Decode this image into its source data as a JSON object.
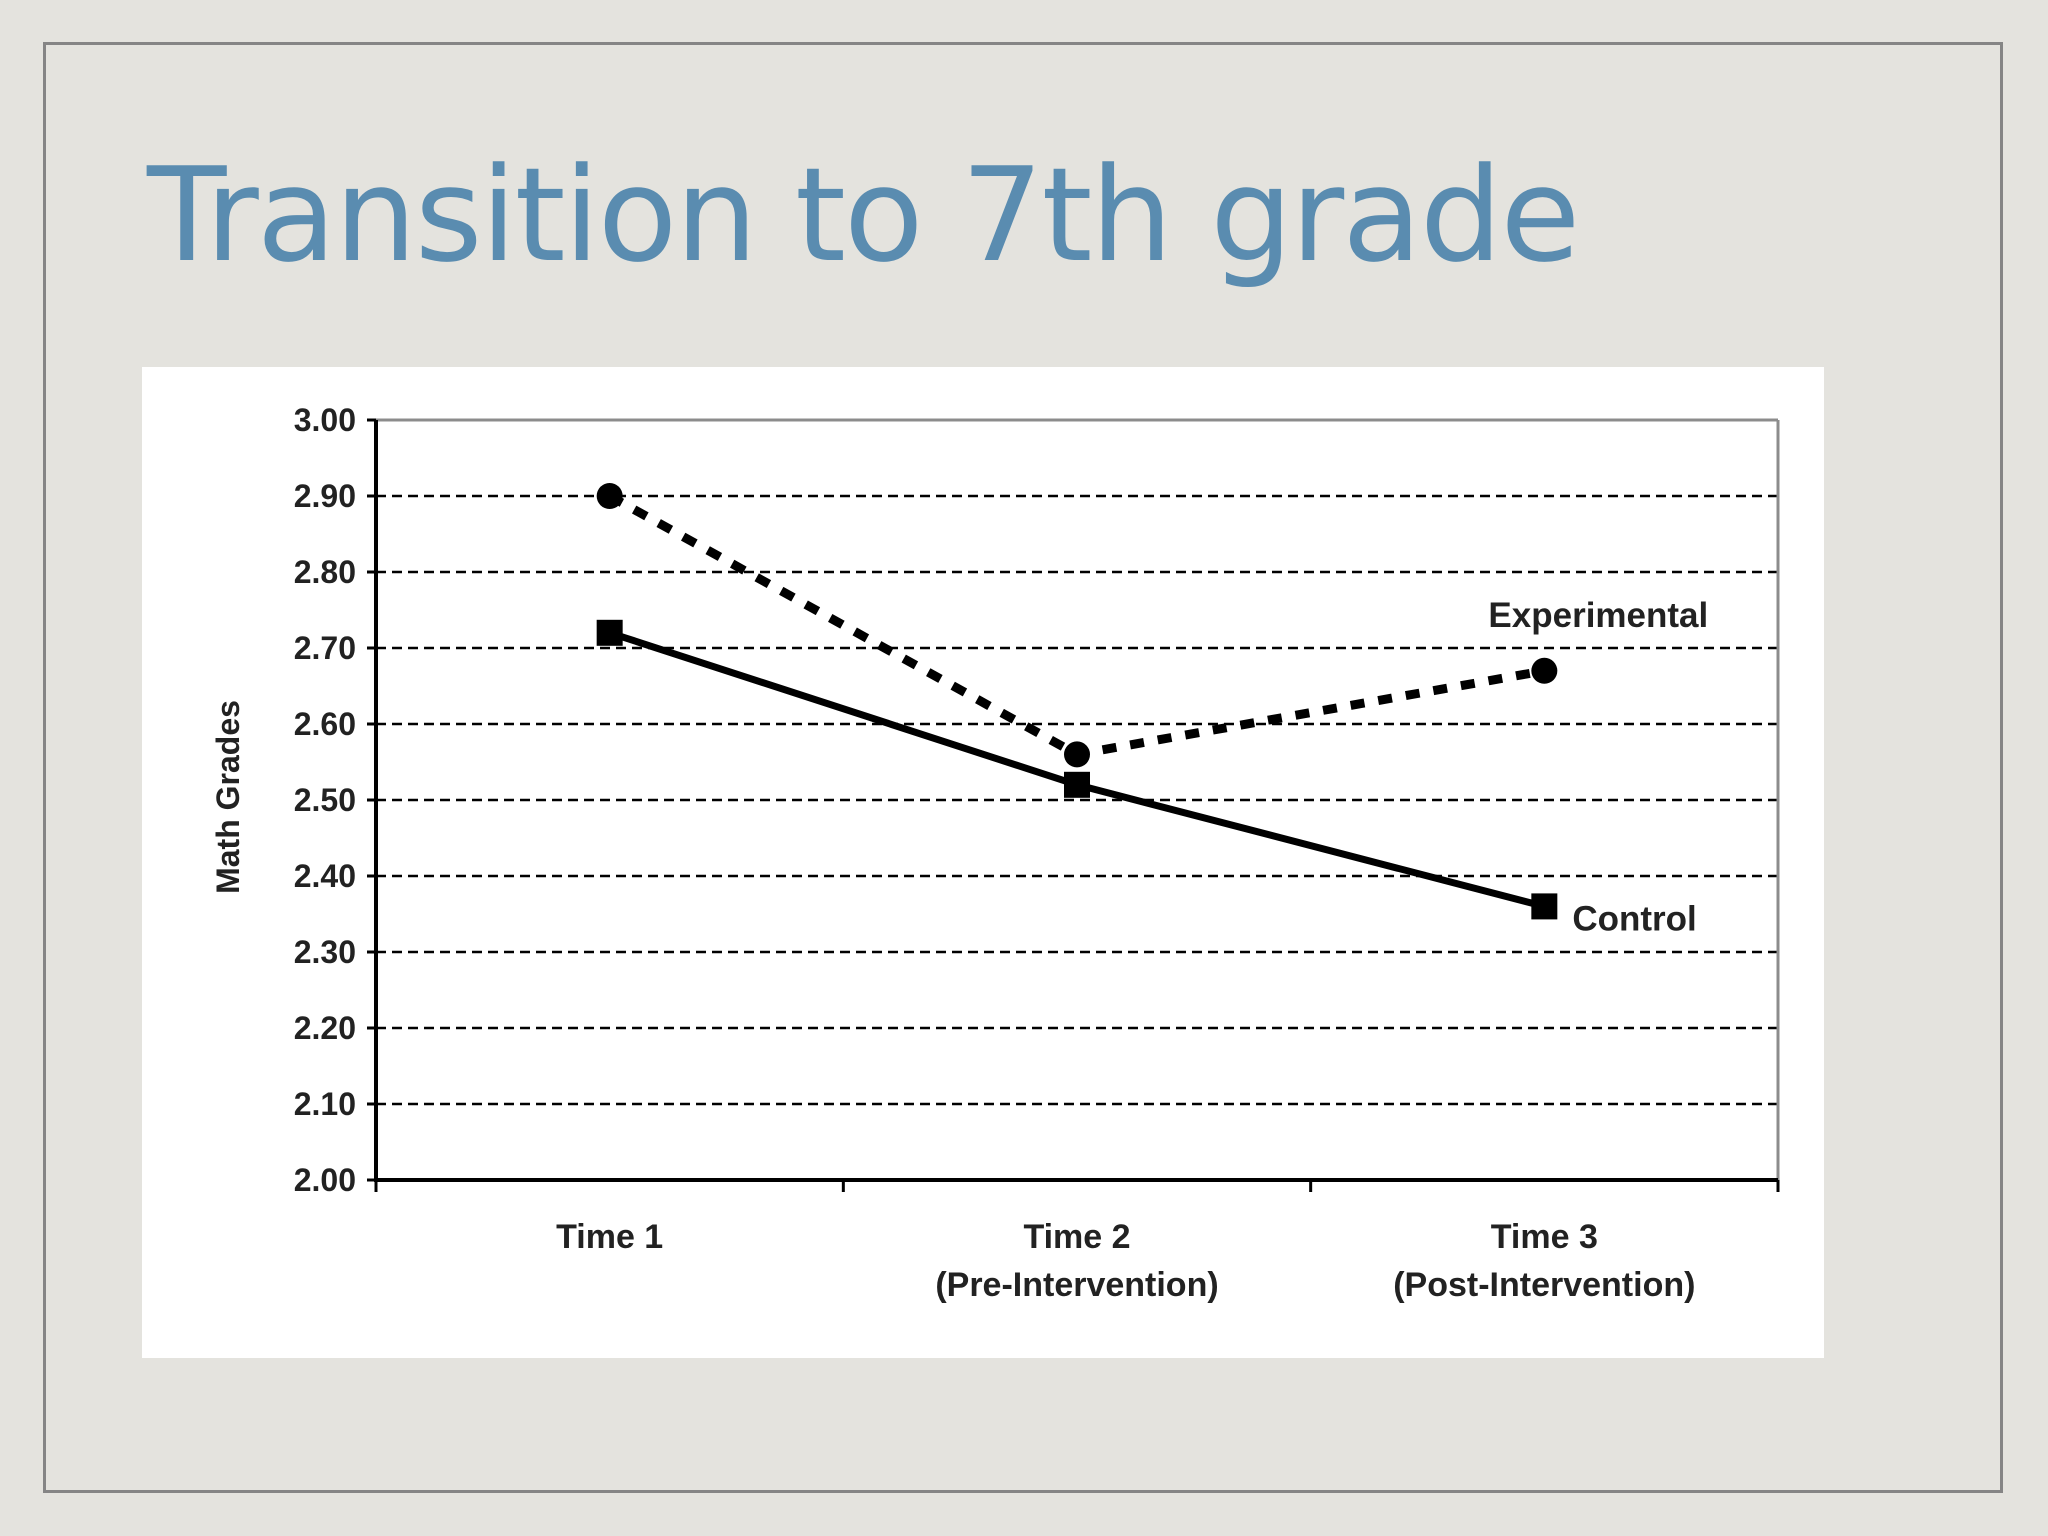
{
  "slide": {
    "title": "Transition to 7th grade"
  },
  "chart_data": {
    "type": "line",
    "title": "",
    "xlabel": "",
    "ylabel": "Math Grades",
    "ylim": [
      2.0,
      3.0
    ],
    "yticks": [
      "2.00",
      "2.10",
      "2.20",
      "2.30",
      "2.40",
      "2.50",
      "2.60",
      "2.70",
      "2.80",
      "2.90",
      "3.00"
    ],
    "grid": true,
    "categories": [
      [
        "Time 1"
      ],
      [
        "Time 2",
        "(Pre-Intervention)"
      ],
      [
        "Time 3",
        "(Post-Intervention)"
      ]
    ],
    "series": [
      {
        "name": "Experimental",
        "values": [
          2.9,
          2.56,
          2.67
        ],
        "line_style": "dotted",
        "marker": "circle",
        "color": "#000000"
      },
      {
        "name": "Control",
        "values": [
          2.72,
          2.52,
          2.36
        ],
        "line_style": "solid",
        "marker": "square",
        "color": "#000000"
      }
    ]
  }
}
